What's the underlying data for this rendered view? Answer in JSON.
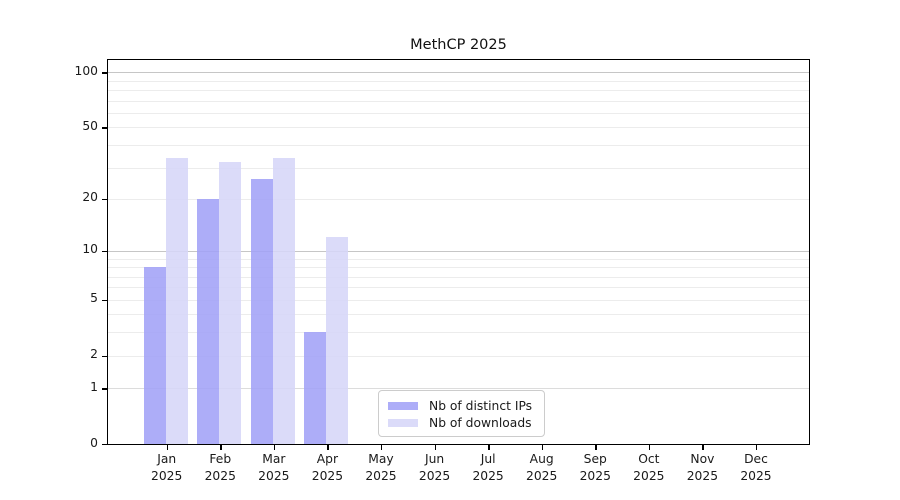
{
  "chart_data": {
    "type": "bar",
    "title": "MethCP 2025",
    "categories": [
      "Jan 2025",
      "Feb 2025",
      "Mar 2025",
      "Apr 2025",
      "May 2025",
      "Jun 2025",
      "Jul 2025",
      "Aug 2025",
      "Sep 2025",
      "Oct 2025",
      "Nov 2025",
      "Dec 2025"
    ],
    "series": [
      {
        "name": "Nb of distinct IPs",
        "color": "#a2a2f7",
        "values": [
          8,
          20,
          26,
          3,
          0,
          0,
          0,
          0,
          0,
          0,
          0,
          0
        ]
      },
      {
        "name": "Nb of downloads",
        "color": "#d6d6f8",
        "values": [
          34,
          32,
          34,
          12,
          0,
          0,
          0,
          0,
          0,
          0,
          0,
          0
        ]
      }
    ],
    "yscale": "log1p",
    "yticks": [
      0,
      1,
      2,
      5,
      10,
      20,
      50,
      100
    ],
    "ylim": [
      0,
      120
    ],
    "xlabel": "",
    "ylabel": "",
    "grid": true,
    "legend_position": "lower-center",
    "axis_color": "#000000",
    "grid_major_color": "#c6c6c6",
    "grid_minor_color": "#ececec",
    "bar_opacity": 0.88
  }
}
